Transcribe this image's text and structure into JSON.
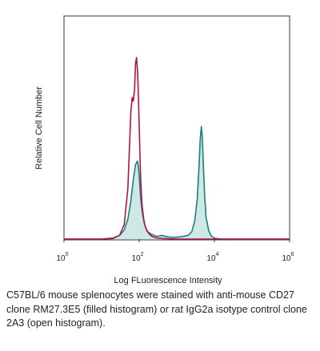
{
  "chart_data": {
    "type": "line",
    "title": "",
    "xlabel": "Log FLuorescence Intensity",
    "ylabel": "Relative Cell Number",
    "x_scale": "log",
    "xlim": [
      1,
      1000000
    ],
    "ylim": [
      0,
      1
    ],
    "x_ticks": [
      {
        "value": 1,
        "base": "10",
        "exp": "0"
      },
      {
        "value": 100,
        "base": "10",
        "exp": "2"
      },
      {
        "value": 10000,
        "base": "10",
        "exp": "4"
      },
      {
        "value": 1000000,
        "base": "10",
        "exp": "6"
      }
    ],
    "grid": false,
    "legend": "none",
    "series": [
      {
        "label_in_caption": "anti-mouse CD27 clone RM27.3E5 (filled histogram)",
        "color": "#1a7f7a",
        "fill": "#cde9e6",
        "filled": true,
        "x": [
          1,
          10,
          20,
          30,
          40,
          50,
          60,
          70,
          80,
          90,
          95,
          100,
          105,
          110,
          120,
          135,
          150,
          170,
          200,
          250,
          300,
          400,
          500,
          700,
          1000,
          1500,
          2000,
          2500,
          3000,
          3500,
          3900,
          4200,
          4500,
          4800,
          5100,
          5500,
          6000,
          7000,
          8000,
          10000,
          15000,
          30000,
          100000,
          1000000
        ],
        "y": [
          0,
          0,
          0.006,
          0.02,
          0.05,
          0.11,
          0.21,
          0.33,
          0.41,
          0.43,
          0.4,
          0.35,
          0.28,
          0.22,
          0.15,
          0.09,
          0.06,
          0.04,
          0.03,
          0.02,
          0.015,
          0.02,
          0.015,
          0.01,
          0.01,
          0.015,
          0.02,
          0.04,
          0.1,
          0.22,
          0.4,
          0.55,
          0.62,
          0.55,
          0.4,
          0.24,
          0.12,
          0.05,
          0.02,
          0.005,
          0,
          0,
          0,
          0
        ]
      },
      {
        "label_in_caption": "rat IgG2a isotype control clone 2A3 (open histogram)",
        "color": "#b0124e",
        "filled": false,
        "x": [
          1,
          10,
          20,
          30,
          40,
          50,
          55,
          60,
          65,
          70,
          75,
          80,
          85,
          90,
          95,
          100,
          105,
          110,
          115,
          120,
          130,
          140,
          160,
          190,
          230,
          300,
          400,
          1000,
          1000000
        ],
        "y": [
          0,
          0,
          0.003,
          0.02,
          0.08,
          0.28,
          0.5,
          0.7,
          0.78,
          0.76,
          0.82,
          0.97,
          1.0,
          0.93,
          0.8,
          0.62,
          0.45,
          0.32,
          0.24,
          0.18,
          0.12,
          0.08,
          0.045,
          0.025,
          0.012,
          0.006,
          0.003,
          0,
          0
        ]
      }
    ]
  },
  "caption": "C57BL/6 mouse splenocytes were stained with anti-mouse CD27 clone RM27.3E5 (filled histogram) or rat IgG2a isotype control clone 2A3 (open histogram)."
}
